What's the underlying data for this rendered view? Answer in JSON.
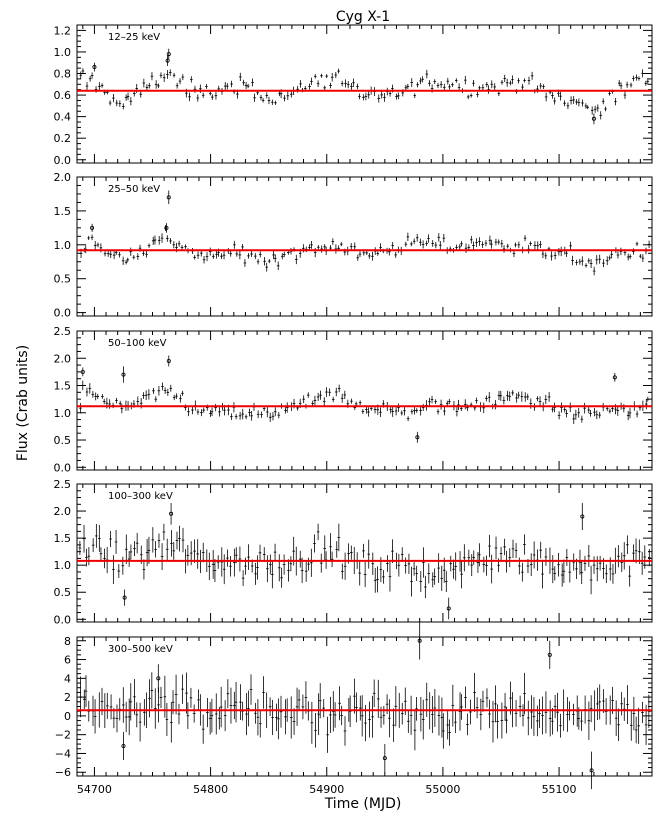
{
  "title": "Cyg X-1",
  "xlabel": "Time (MJD)",
  "ylabel": "Flux (Crab units)",
  "chart_data": {
    "type": "scatter",
    "title": "Cyg X-1",
    "xlabel": "Time (MJD)",
    "ylabel": "Flux (Crab units)",
    "xlim": [
      54685,
      55180
    ],
    "xticks": [
      54700,
      54800,
      54900,
      55000,
      55100
    ],
    "xtick_labels": [
      "54700",
      "54800",
      "54900",
      "55000",
      "55100"
    ],
    "colors": {
      "data": "#000000",
      "mean_line": "#ee0000"
    },
    "panels": [
      {
        "label": "12–25 keV",
        "ylim": [
          -0.03,
          1.25
        ],
        "yticks": [
          0,
          0.2,
          0.4,
          0.6,
          0.8,
          1.0,
          1.2
        ],
        "ytick_labels": [
          "0.0",
          "0.2",
          "0.4",
          "0.6",
          "0.8",
          "1.0",
          "1.2"
        ],
        "mean": 0.64,
        "anchors": [
          [
            54688,
            0.74
          ],
          [
            54700,
            0.74
          ],
          [
            54710,
            0.62
          ],
          [
            54725,
            0.5
          ],
          [
            54745,
            0.7
          ],
          [
            54765,
            0.8
          ],
          [
            54775,
            0.72
          ],
          [
            54790,
            0.58
          ],
          [
            54810,
            0.66
          ],
          [
            54830,
            0.7
          ],
          [
            54850,
            0.56
          ],
          [
            54870,
            0.62
          ],
          [
            54890,
            0.72
          ],
          [
            54910,
            0.78
          ],
          [
            54930,
            0.6
          ],
          [
            54950,
            0.58
          ],
          [
            54970,
            0.66
          ],
          [
            54990,
            0.74
          ],
          [
            55010,
            0.7
          ],
          [
            55030,
            0.66
          ],
          [
            55050,
            0.7
          ],
          [
            55070,
            0.74
          ],
          [
            55090,
            0.6
          ],
          [
            55110,
            0.56
          ],
          [
            55130,
            0.46
          ],
          [
            55150,
            0.62
          ],
          [
            55165,
            0.72
          ],
          [
            55180,
            0.74
          ]
        ],
        "noise": 0.06,
        "err": 0.03,
        "outliers": [
          [
            54764,
            0.98,
            0.05
          ],
          [
            54763,
            0.92,
            0.05
          ],
          [
            54700,
            0.86,
            0.04
          ],
          [
            55130,
            0.38,
            0.05
          ]
        ]
      },
      {
        "label": "25–50 keV",
        "ylim": [
          -0.05,
          2.0
        ],
        "yticks": [
          0,
          0.5,
          1.0,
          1.5,
          2.0
        ],
        "ytick_labels": [
          "0.0",
          "0.5",
          "1.0",
          "1.5",
          "2.0"
        ],
        "mean": 0.92,
        "anchors": [
          [
            54688,
            0.95
          ],
          [
            54700,
            1.05
          ],
          [
            54712,
            0.88
          ],
          [
            54725,
            0.78
          ],
          [
            54745,
            0.95
          ],
          [
            54760,
            1.15
          ],
          [
            54775,
            0.96
          ],
          [
            54790,
            0.8
          ],
          [
            54810,
            0.88
          ],
          [
            54830,
            0.85
          ],
          [
            54850,
            0.78
          ],
          [
            54870,
            0.9
          ],
          [
            54890,
            0.95
          ],
          [
            54910,
            1.0
          ],
          [
            54930,
            0.86
          ],
          [
            54950,
            0.9
          ],
          [
            54970,
            1.0
          ],
          [
            54990,
            1.05
          ],
          [
            55010,
            0.96
          ],
          [
            55030,
            1.05
          ],
          [
            55050,
            1.0
          ],
          [
            55070,
            1.0
          ],
          [
            55090,
            0.9
          ],
          [
            55110,
            0.85
          ],
          [
            55130,
            0.7
          ],
          [
            55150,
            0.85
          ],
          [
            55165,
            0.9
          ],
          [
            55180,
            0.95
          ]
        ],
        "noise": 0.08,
        "err": 0.05,
        "outliers": [
          [
            54764,
            1.7,
            0.1
          ],
          [
            54762,
            1.25,
            0.07
          ],
          [
            54698,
            1.25,
            0.06
          ]
        ]
      },
      {
        "label": "50–100 keV",
        "ylim": [
          -0.05,
          2.5
        ],
        "yticks": [
          0,
          0.5,
          1.0,
          1.5,
          2.0,
          2.5
        ],
        "ytick_labels": [
          "0.0",
          "0.5",
          "1.0",
          "1.5",
          "2.0",
          "2.5"
        ],
        "mean": 1.12,
        "anchors": [
          [
            54688,
            1.5
          ],
          [
            54700,
            1.3
          ],
          [
            54712,
            1.15
          ],
          [
            54725,
            1.05
          ],
          [
            54745,
            1.3
          ],
          [
            54765,
            1.35
          ],
          [
            54775,
            1.25
          ],
          [
            54790,
            1.0
          ],
          [
            54810,
            1.05
          ],
          [
            54830,
            0.95
          ],
          [
            54850,
            1.0
          ],
          [
            54870,
            1.1
          ],
          [
            54890,
            1.2
          ],
          [
            54910,
            1.35
          ],
          [
            54930,
            1.1
          ],
          [
            54950,
            1.05
          ],
          [
            54970,
            1.0
          ],
          [
            54990,
            1.15
          ],
          [
            55010,
            1.1
          ],
          [
            55030,
            1.2
          ],
          [
            55050,
            1.25
          ],
          [
            55070,
            1.35
          ],
          [
            55090,
            1.15
          ],
          [
            55110,
            1.0
          ],
          [
            55130,
            0.95
          ],
          [
            55150,
            1.1
          ],
          [
            55165,
            1.05
          ],
          [
            55180,
            1.2
          ]
        ],
        "noise": 0.1,
        "err": 0.07,
        "outliers": [
          [
            54764,
            1.95,
            0.1
          ],
          [
            54725,
            1.7,
            0.15
          ],
          [
            54978,
            0.55,
            0.1
          ],
          [
            55148,
            1.65,
            0.08
          ],
          [
            54690,
            1.75,
            0.08
          ]
        ]
      },
      {
        "label": "100–300 keV",
        "ylim": [
          -0.05,
          2.5
        ],
        "yticks": [
          0,
          0.5,
          1.0,
          1.5,
          2.0,
          2.5
        ],
        "ytick_labels": [
          "0.0",
          "0.5",
          "1.0",
          "1.5",
          "2.0",
          "2.5"
        ],
        "mean": 1.08,
        "anchors": [
          [
            54688,
            1.45
          ],
          [
            54700,
            1.3
          ],
          [
            54712,
            1.15
          ],
          [
            54725,
            1.1
          ],
          [
            54745,
            1.25
          ],
          [
            54765,
            1.4
          ],
          [
            54775,
            1.3
          ],
          [
            54790,
            1.05
          ],
          [
            54810,
            1.1
          ],
          [
            54830,
            1.0
          ],
          [
            54850,
            1.05
          ],
          [
            54870,
            1.1
          ],
          [
            54890,
            1.2
          ],
          [
            54910,
            1.25
          ],
          [
            54930,
            0.95
          ],
          [
            54950,
            0.95
          ],
          [
            54970,
            1.0
          ],
          [
            54990,
            0.85
          ],
          [
            55010,
            0.9
          ],
          [
            55030,
            1.1
          ],
          [
            55050,
            1.2
          ],
          [
            55070,
            1.15
          ],
          [
            55090,
            1.05
          ],
          [
            55110,
            1.0
          ],
          [
            55130,
            0.95
          ],
          [
            55150,
            1.0
          ],
          [
            55165,
            1.1
          ],
          [
            55180,
            1.2
          ]
        ],
        "noise": 0.2,
        "err": 0.2,
        "outliers": [
          [
            54726,
            0.4,
            0.15
          ],
          [
            54766,
            1.95,
            0.2
          ],
          [
            55005,
            0.2,
            0.2
          ],
          [
            55120,
            1.9,
            0.25
          ]
        ]
      },
      {
        "label": "300–500 keV",
        "ylim": [
          -6.4,
          8.4
        ],
        "yticks": [
          -6,
          -4,
          -2,
          0,
          2,
          4,
          6,
          8
        ],
        "ytick_labels": [
          "−6",
          "−4",
          "−2",
          "0",
          "2",
          "4",
          "6",
          "8"
        ],
        "mean": 0.6,
        "anchors": [
          [
            54688,
            0.8
          ],
          [
            54720,
            0.8
          ],
          [
            54760,
            1.2
          ],
          [
            54800,
            0.5
          ],
          [
            54840,
            0.6
          ],
          [
            54880,
            0.5
          ],
          [
            54920,
            0.6
          ],
          [
            54960,
            0.5
          ],
          [
            55000,
            0.4
          ],
          [
            55040,
            0.6
          ],
          [
            55080,
            0.7
          ],
          [
            55120,
            0.5
          ],
          [
            55160,
            0.6
          ],
          [
            55180,
            0.7
          ]
        ],
        "noise": 1.5,
        "err": 1.6,
        "outliers": [
          [
            55092,
            6.5,
            1.5
          ],
          [
            54980,
            8.0,
            2.0
          ],
          [
            55128,
            -5.8,
            2.0
          ],
          [
            54725,
            -3.2,
            1.5
          ],
          [
            54755,
            4.0,
            1.5
          ],
          [
            54950,
            -4.5,
            1.5
          ]
        ]
      }
    ],
    "n_points": 190
  }
}
